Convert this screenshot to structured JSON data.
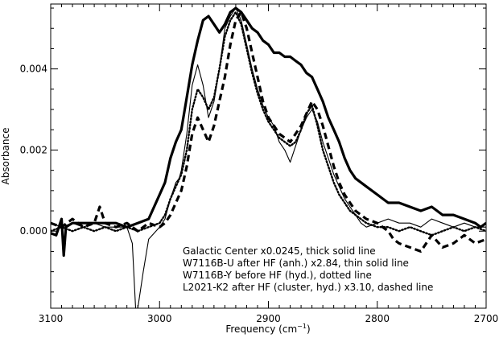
{
  "chart_data": {
    "type": "line",
    "xlabel": "Frequency (cm",
    "xlabel_sup": "−1",
    "xlabel_close": ")",
    "ylabel": "Absorbance",
    "xlim": [
      3100,
      2700
    ],
    "ylim": [
      -0.0019,
      0.0056
    ],
    "x_ticks": [
      3100,
      3000,
      2900,
      2800,
      2700
    ],
    "x_tick_labels": [
      "3100",
      "3000",
      "2900",
      "2800",
      "2700"
    ],
    "y_ticks": [
      0.0,
      0.002,
      0.004
    ],
    "y_tick_labels": [
      "0.000",
      "0.002",
      "0.004"
    ],
    "grid": false,
    "legend_lines": [
      "Galactic Center x0.0245, thick solid line",
      "W7116B-U after HF (anh.) x2.84, thin solid line",
      "W7116B-Y before HF (hyd.), dotted line",
      "L2021-K2 after HF (cluster, hyd.) x3.10, dashed line"
    ],
    "series": [
      {
        "style": "thick solid",
        "x": [
          3100,
          3095,
          3090,
          3088,
          3086,
          3080,
          3070,
          3060,
          3050,
          3040,
          3030,
          3020,
          3010,
          3005,
          3000,
          2995,
          2990,
          2985,
          2980,
          2975,
          2970,
          2965,
          2960,
          2955,
          2950,
          2945,
          2940,
          2935,
          2930,
          2925,
          2920,
          2915,
          2910,
          2905,
          2900,
          2895,
          2890,
          2885,
          2880,
          2875,
          2870,
          2865,
          2860,
          2855,
          2850,
          2845,
          2840,
          2835,
          2830,
          2825,
          2820,
          2810,
          2800,
          2790,
          2780,
          2770,
          2760,
          2750,
          2740,
          2730,
          2720,
          2710,
          2705,
          2700
        ],
        "y": [
          -5e-05,
          -0.0001,
          0.0003,
          -0.0006,
          0.0001,
          0.0002,
          0.0002,
          0.0002,
          0.0002,
          0.0002,
          0.0001,
          0.0002,
          0.0003,
          0.0006,
          0.0009,
          0.0012,
          0.0018,
          0.0022,
          0.0025,
          0.0033,
          0.0041,
          0.0047,
          0.0052,
          0.0053,
          0.0051,
          0.0049,
          0.0051,
          0.0054,
          0.0055,
          0.0054,
          0.0052,
          0.005,
          0.0049,
          0.0047,
          0.0046,
          0.0044,
          0.0044,
          0.0043,
          0.0043,
          0.0042,
          0.0041,
          0.0039,
          0.0038,
          0.0035,
          0.0032,
          0.0028,
          0.0025,
          0.0022,
          0.0018,
          0.0015,
          0.0013,
          0.0011,
          0.0009,
          0.0007,
          0.0007,
          0.0006,
          0.0005,
          0.0006,
          0.0004,
          0.0004,
          0.0003,
          0.0002,
          0.0001,
          0.0002
        ]
      },
      {
        "style": "thin solid",
        "x": [
          3100,
          3090,
          3080,
          3070,
          3060,
          3050,
          3040,
          3030,
          3025,
          3022,
          3020,
          3015,
          3010,
          3000,
          2995,
          2990,
          2985,
          2982,
          2980,
          2975,
          2970,
          2965,
          2960,
          2955,
          2950,
          2945,
          2940,
          2935,
          2930,
          2925,
          2920,
          2915,
          2910,
          2905,
          2900,
          2895,
          2890,
          2885,
          2880,
          2875,
          2870,
          2865,
          2860,
          2855,
          2850,
          2845,
          2840,
          2835,
          2830,
          2825,
          2820,
          2815,
          2810,
          2800,
          2790,
          2780,
          2770,
          2760,
          2750,
          2740,
          2730,
          2720,
          2710,
          2700
        ],
        "y": [
          0.0002,
          0.0001,
          0.0002,
          0.0001,
          0.0002,
          0.0001,
          0.0001,
          0.0001,
          -0.0003,
          -0.0019,
          -0.0019,
          -0.001,
          -0.0002,
          0.0001,
          0.0003,
          0.0008,
          0.0012,
          0.0013,
          0.0015,
          0.0024,
          0.0036,
          0.0041,
          0.0036,
          0.0028,
          0.0032,
          0.004,
          0.005,
          0.0053,
          0.0055,
          0.0052,
          0.0046,
          0.004,
          0.0035,
          0.0031,
          0.0028,
          0.0026,
          0.0022,
          0.002,
          0.0017,
          0.0021,
          0.0025,
          0.0028,
          0.003,
          0.0027,
          0.0022,
          0.0018,
          0.0014,
          0.0011,
          0.0008,
          0.0006,
          0.0004,
          0.0002,
          0.0001,
          0.0002,
          0.0003,
          0.0002,
          0.0002,
          0.0001,
          0.0003,
          0.0002,
          0.0001,
          0.0002,
          0.0001,
          0.0001
        ]
      },
      {
        "style": "dotted",
        "x": [
          3100,
          3090,
          3080,
          3070,
          3060,
          3050,
          3040,
          3030,
          3020,
          3010,
          3000,
          2995,
          2990,
          2985,
          2980,
          2975,
          2970,
          2965,
          2960,
          2955,
          2950,
          2945,
          2940,
          2935,
          2930,
          2925,
          2920,
          2915,
          2910,
          2905,
          2900,
          2895,
          2890,
          2885,
          2880,
          2875,
          2870,
          2865,
          2860,
          2855,
          2850,
          2845,
          2840,
          2835,
          2830,
          2825,
          2820,
          2810,
          2800,
          2790,
          2780,
          2770,
          2760,
          2750,
          2740,
          2730,
          2720,
          2710,
          2700
        ],
        "y": [
          0.0,
          0.0001,
          0.0,
          0.0001,
          0.0,
          0.0001,
          0.0,
          0.0001,
          0.0,
          0.0001,
          0.0002,
          0.0004,
          0.0008,
          0.0011,
          0.0014,
          0.002,
          0.003,
          0.0035,
          0.0033,
          0.003,
          0.0033,
          0.004,
          0.0048,
          0.0052,
          0.0054,
          0.0051,
          0.0045,
          0.0039,
          0.0034,
          0.003,
          0.0027,
          0.0025,
          0.0023,
          0.0022,
          0.0021,
          0.0022,
          0.0025,
          0.0029,
          0.0031,
          0.0026,
          0.002,
          0.0016,
          0.0012,
          0.0009,
          0.0007,
          0.0005,
          0.0004,
          0.0002,
          0.0001,
          0.0001,
          0.0,
          0.0001,
          0.0,
          -0.0001,
          0.0,
          0.0001,
          0.0,
          0.0001,
          0.0
        ]
      },
      {
        "style": "dashed",
        "x": [
          3100,
          3090,
          3080,
          3070,
          3060,
          3055,
          3050,
          3040,
          3030,
          3020,
          3010,
          3000,
          2995,
          2990,
          2985,
          2980,
          2975,
          2970,
          2965,
          2960,
          2955,
          2950,
          2945,
          2940,
          2935,
          2930,
          2925,
          2920,
          2915,
          2910,
          2905,
          2900,
          2895,
          2890,
          2885,
          2880,
          2875,
          2870,
          2865,
          2860,
          2855,
          2850,
          2845,
          2840,
          2835,
          2830,
          2825,
          2820,
          2810,
          2800,
          2790,
          2785,
          2780,
          2770,
          2760,
          2750,
          2740,
          2730,
          2720,
          2710,
          2700
        ],
        "y": [
          0.0002,
          0.0001,
          0.0003,
          0.0001,
          0.0002,
          0.0006,
          0.0002,
          0.0001,
          0.0002,
          0.0,
          0.0002,
          0.0001,
          0.0002,
          0.0004,
          0.0007,
          0.001,
          0.0016,
          0.0024,
          0.0028,
          0.0025,
          0.0022,
          0.0026,
          0.0032,
          0.0038,
          0.0046,
          0.0052,
          0.0054,
          0.005,
          0.0044,
          0.0038,
          0.0032,
          0.0028,
          0.0026,
          0.0024,
          0.0023,
          0.0022,
          0.0024,
          0.0026,
          0.0029,
          0.0032,
          0.003,
          0.0026,
          0.0021,
          0.0016,
          0.0012,
          0.0009,
          0.0007,
          0.0005,
          0.0003,
          0.0002,
          0.0,
          -0.0002,
          -0.0003,
          -0.0004,
          -0.0005,
          -0.0001,
          -0.0004,
          -0.0003,
          -0.0001,
          -0.0003,
          -0.0002
        ]
      }
    ]
  }
}
